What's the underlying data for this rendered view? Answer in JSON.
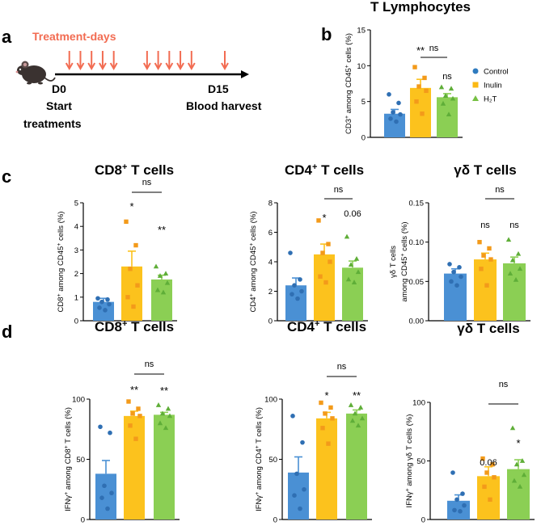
{
  "panel_letters": {
    "a": "a",
    "b": "b",
    "c": "c",
    "d": "d"
  },
  "timeline": {
    "treatment_label": "Treatment-days",
    "start_day": "D0",
    "end_day": "D15",
    "start_label_line1": "Start",
    "start_label_line2": "treatments",
    "end_label": "Blood harvest",
    "treatment_days": [
      1,
      2,
      3,
      4,
      5,
      8,
      9,
      10,
      11,
      12,
      15
    ],
    "colors": {
      "arrow": "#f26c52",
      "axis": "#000000"
    }
  },
  "legend": {
    "items": [
      {
        "label": "Control",
        "color": "#2f7bbf",
        "marker": "circle"
      },
      {
        "label": "Inulin",
        "color": "#fbb913",
        "marker": "square"
      },
      {
        "label": "H₂T",
        "color": "#76c043",
        "marker": "triangle"
      }
    ]
  },
  "colors": {
    "control": "#4a90d4",
    "inulin": "#fcc21d",
    "h2t": "#8bcf54",
    "control_pt": "#2f6fb3",
    "inulin_pt": "#f39a1a",
    "h2t_pt": "#5fae38"
  },
  "chart_data": [
    {
      "id": "b",
      "type": "bar",
      "title": "T Lymphocytes",
      "ylabel_html": [
        "CD3",
        "+",
        " among CD45",
        "+",
        " cells (%)"
      ],
      "ylim": [
        0,
        15
      ],
      "yticks": [
        0,
        5,
        10,
        15
      ],
      "categories": [
        "Control",
        "Inulin",
        "H₂T"
      ],
      "values": [
        3.3,
        6.9,
        5.6
      ],
      "errors": [
        0.6,
        1.2,
        0.5
      ],
      "points": [
        [
          6,
          4.8,
          3.5,
          3.2,
          2.6,
          2.2
        ],
        [
          9.8,
          8.3,
          7.1,
          6.5,
          5.0,
          3.3
        ],
        [
          7.0,
          6.8,
          5.8,
          5.4,
          4.7,
          3.2
        ]
      ],
      "significance": [
        "",
        "**",
        "ns"
      ],
      "bracket": {
        "label": "ns"
      }
    },
    {
      "id": "c1",
      "type": "bar",
      "title_parts": [
        "CD8",
        "+",
        " T cells"
      ],
      "ylabel_html": [
        "CD8",
        "+",
        " among CD45",
        "+",
        " cells (%)"
      ],
      "ylim": [
        0,
        5
      ],
      "yticks": [
        0,
        1,
        2,
        3,
        4,
        5
      ],
      "categories": [
        "Control",
        "Inulin",
        "H₂T"
      ],
      "values": [
        0.8,
        2.3,
        1.75
      ],
      "errors": [
        0.15,
        0.65,
        0.18
      ],
      "points": [
        [
          0.95,
          0.9,
          0.8,
          0.7,
          0.55,
          0.45
        ],
        [
          4.2,
          3.2,
          2.2,
          1.5,
          1.0,
          0.6
        ],
        [
          2.3,
          2.0,
          1.9,
          1.6,
          1.3,
          1.2
        ]
      ],
      "significance": [
        "",
        "*",
        "**"
      ],
      "bracket": {
        "label": "ns"
      }
    },
    {
      "id": "c2",
      "type": "bar",
      "title_parts": [
        "CD4",
        "+",
        " T cells"
      ],
      "ylabel_html": [
        "CD4",
        "+",
        " among CD45",
        "+",
        " cells (%)"
      ],
      "ylim": [
        0,
        8
      ],
      "yticks": [
        0,
        2,
        4,
        6,
        8
      ],
      "categories": [
        "Control",
        "Inulin",
        "H₂T"
      ],
      "values": [
        2.4,
        4.5,
        3.6
      ],
      "errors": [
        0.5,
        0.7,
        0.45
      ],
      "points": [
        [
          4.6,
          2.8,
          2.4,
          2.0,
          1.8,
          1.5
        ],
        [
          6.8,
          5.2,
          4.6,
          4.0,
          3.0,
          2.6
        ],
        [
          5.7,
          4.2,
          3.8,
          3.3,
          2.8,
          2.6
        ]
      ],
      "significance": [
        "",
        "*",
        "0.06"
      ],
      "bracket": {
        "label": "ns"
      }
    },
    {
      "id": "c3",
      "type": "bar",
      "title": "γδ T cells",
      "ylabel_line1": "γδ T cells",
      "ylabel_html": [
        "among CD45",
        "+",
        " cells (%)"
      ],
      "ylim": [
        0,
        0.15
      ],
      "yticks": [
        0.0,
        0.05,
        0.1,
        0.15
      ],
      "tick_format": "fixed2",
      "categories": [
        "Control",
        "Inulin",
        "H₂T"
      ],
      "values": [
        0.06,
        0.078,
        0.073
      ],
      "errors": [
        0.006,
        0.008,
        0.008
      ],
      "points": [
        [
          0.072,
          0.068,
          0.062,
          0.056,
          0.05,
          0.045
        ],
        [
          0.1,
          0.092,
          0.083,
          0.078,
          0.066,
          0.045
        ],
        [
          0.103,
          0.085,
          0.077,
          0.066,
          0.06,
          0.052
        ]
      ],
      "significance": [
        "",
        "ns",
        "ns"
      ],
      "bracket": {
        "label": "ns"
      }
    },
    {
      "id": "d1",
      "type": "bar",
      "title_parts": [
        "CD8",
        "+",
        " T cells"
      ],
      "ylabel_html": [
        "IFNγ",
        "+",
        " among CD8",
        "+",
        " T cells (%)"
      ],
      "ylim": [
        0,
        100
      ],
      "yticks": [
        0,
        50,
        100
      ],
      "categories": [
        "Control",
        "Inulin",
        "H₂T"
      ],
      "values": [
        38,
        86,
        87
      ],
      "errors": [
        11,
        4,
        2
      ],
      "points": [
        [
          77,
          72,
          28,
          22,
          18,
          9
        ],
        [
          98,
          92,
          88,
          86,
          78,
          67
        ],
        [
          95,
          92,
          88,
          86,
          80,
          76
        ]
      ],
      "significance": [
        "",
        "**",
        "**"
      ],
      "bracket": {
        "label": "ns"
      }
    },
    {
      "id": "d2",
      "type": "bar",
      "title_parts": [
        "CD4",
        "+",
        " T cells"
      ],
      "ylabel_html": [
        "IFNγ",
        "+",
        " among CD4",
        "+",
        " T cells (%)"
      ],
      "ylim": [
        0,
        100
      ],
      "yticks": [
        0,
        50,
        100
      ],
      "categories": [
        "Control",
        "Inulin",
        "H₂T"
      ],
      "values": [
        39,
        84,
        88
      ],
      "errors": [
        13,
        5,
        3
      ],
      "points": [
        [
          86,
          64,
          38,
          25,
          20,
          9
        ],
        [
          97,
          93,
          88,
          84,
          76,
          63
        ],
        [
          95,
          93,
          88,
          84,
          82,
          78
        ]
      ],
      "significance": [
        "",
        "*",
        "**"
      ],
      "bracket": {
        "label": "ns"
      }
    },
    {
      "id": "d3",
      "type": "bar",
      "title": "γδ T cells",
      "ylabel_html": [
        "IFNγ",
        "+",
        " among γδ T cells (%)"
      ],
      "ylim": [
        0,
        100
      ],
      "yticks": [
        0,
        50,
        100
      ],
      "categories": [
        "Control",
        "Inulin",
        "H₂T"
      ],
      "values": [
        16,
        37,
        43
      ],
      "errors": [
        5,
        8,
        8
      ],
      "points": [
        [
          40,
          22,
          17,
          12,
          8,
          7
        ],
        [
          52,
          47,
          40,
          36,
          28,
          17
        ],
        [
          78,
          50,
          47,
          38,
          33,
          28
        ]
      ],
      "significance": [
        "",
        "0.06",
        "*"
      ],
      "bracket": {
        "label": "ns"
      }
    }
  ]
}
